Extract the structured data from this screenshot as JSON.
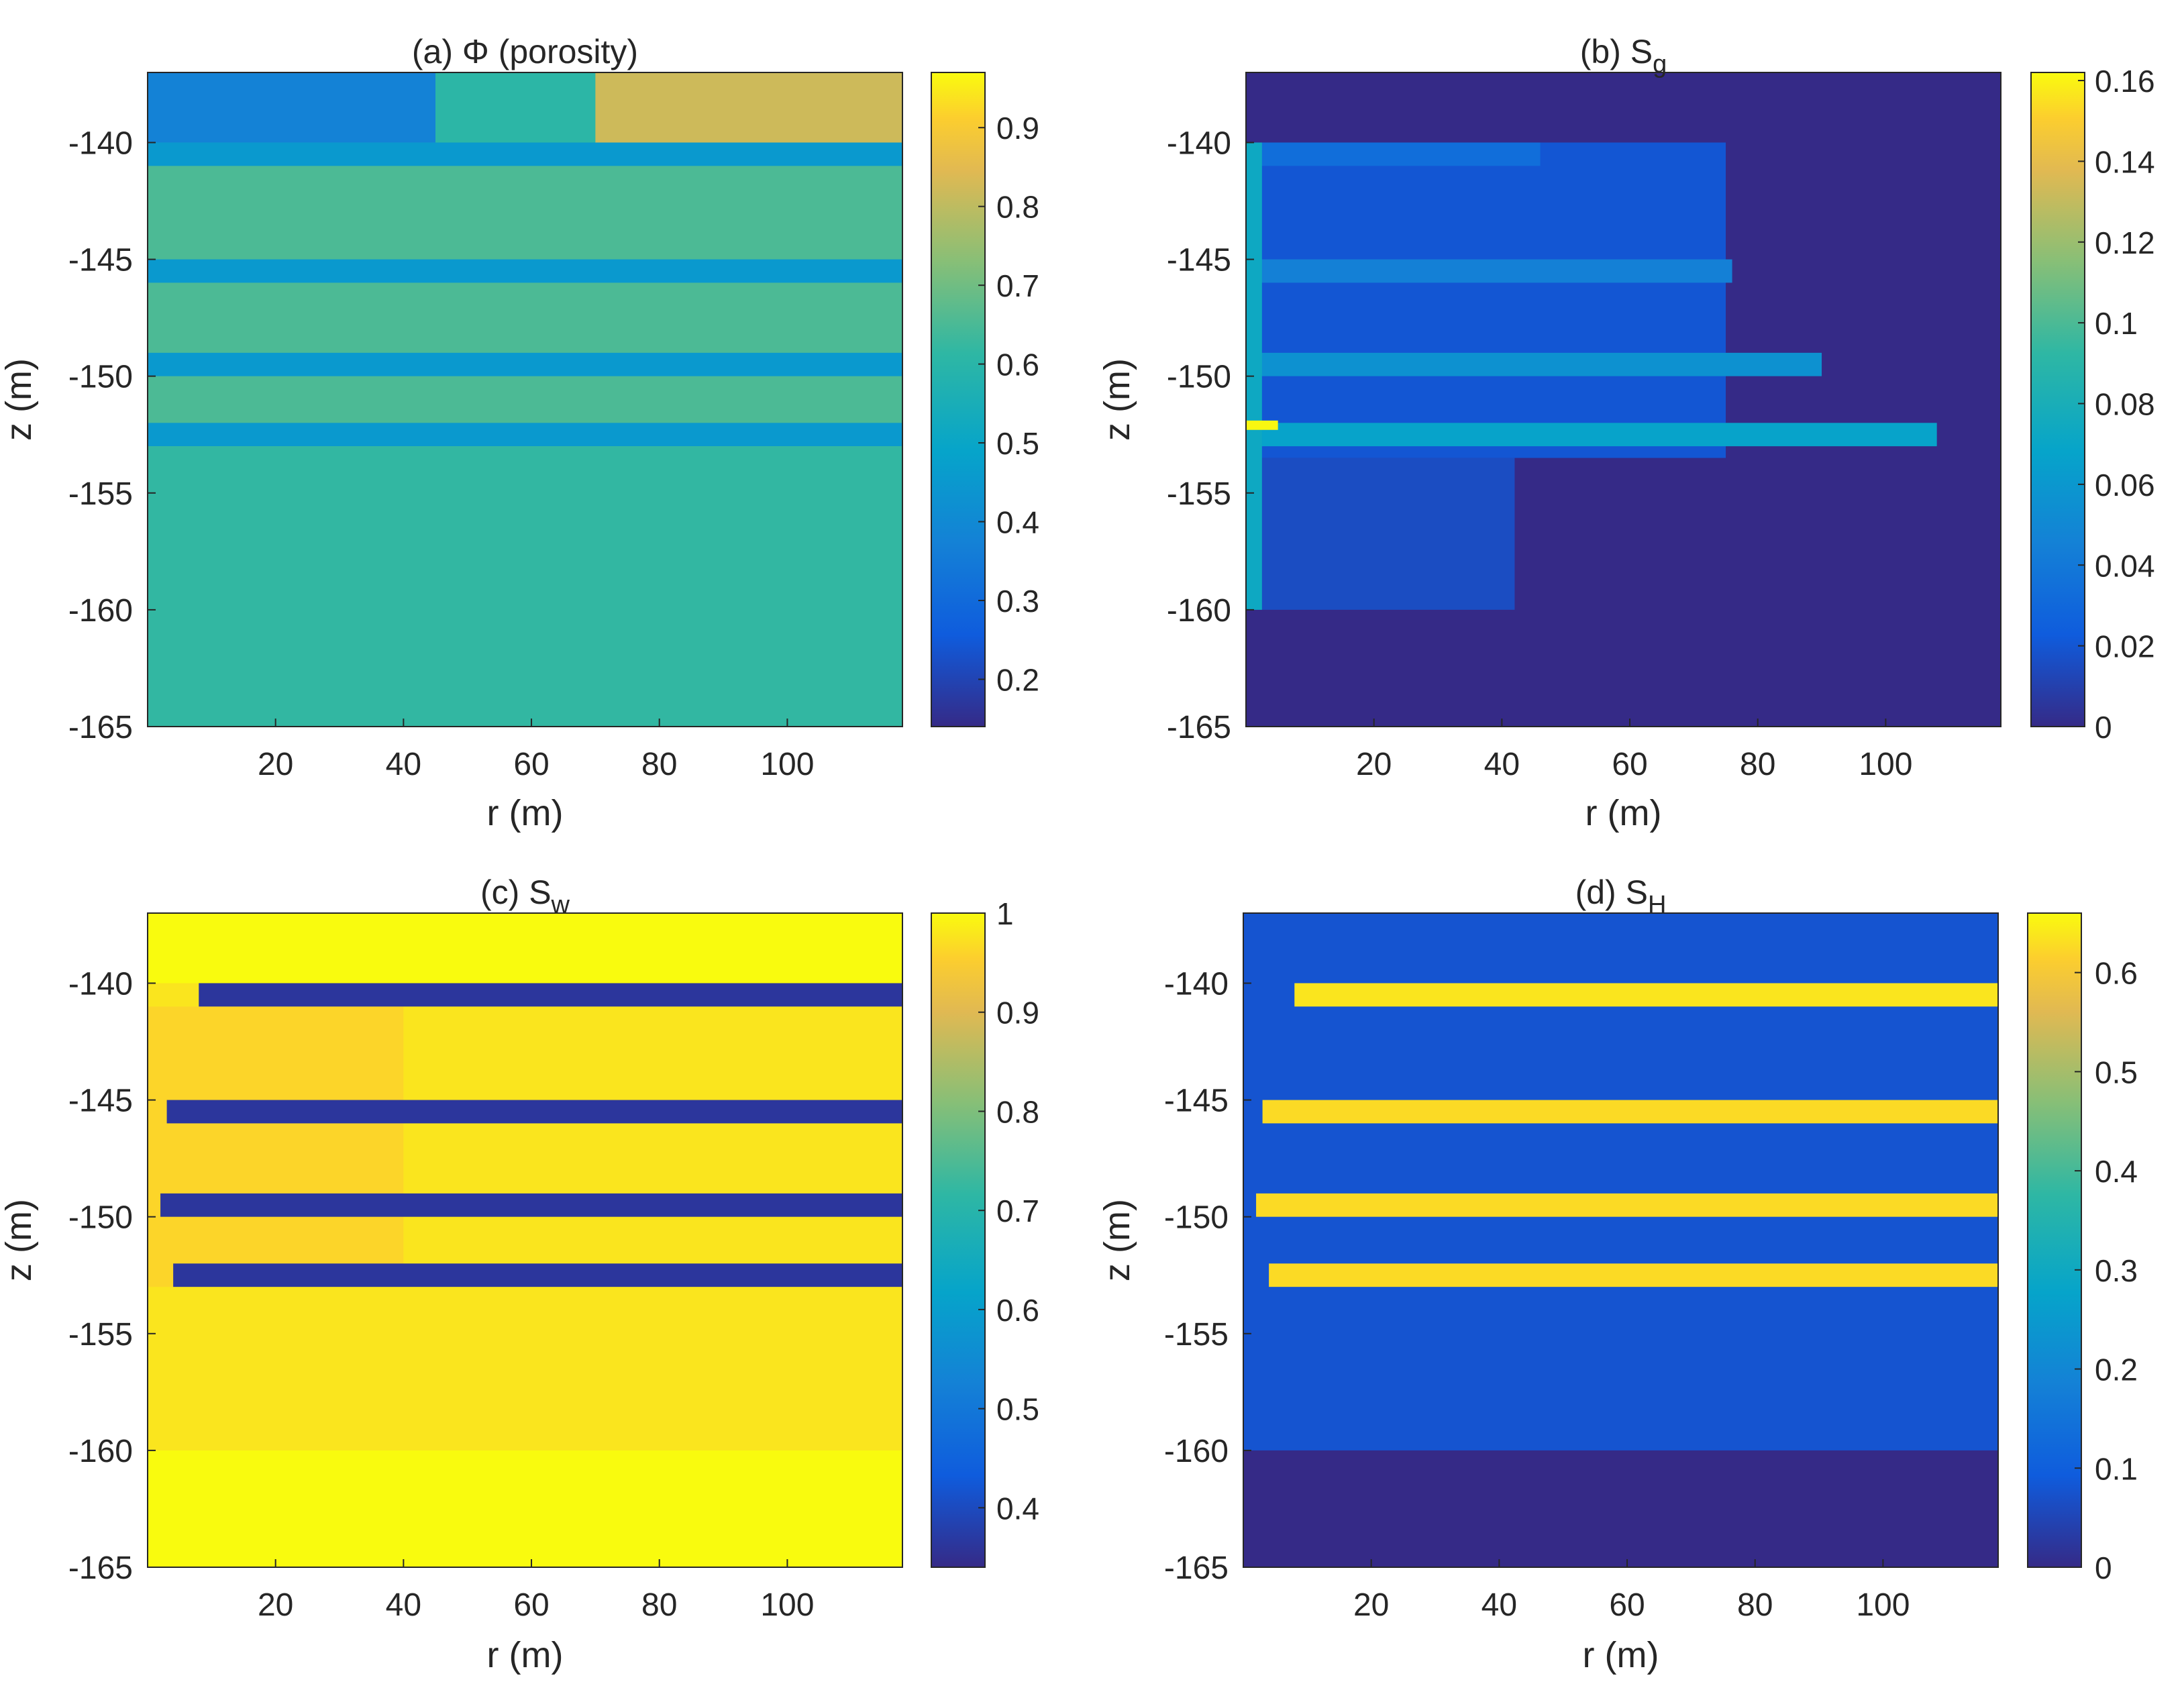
{
  "figure": {
    "background": "#ffffff"
  },
  "chart_data": [
    {
      "id": "a",
      "type": "heatmap",
      "title": "(a) Φ (porosity)",
      "title_parts": [
        {
          "text": "(a) Φ (porosity)",
          "sub": ""
        }
      ],
      "xlabel": "r (m)",
      "ylabel": "z (m)",
      "xlim": [
        0,
        118
      ],
      "ylim": [
        -165,
        -137
      ],
      "xticks": [
        20,
        40,
        60,
        80,
        100
      ],
      "yticks": [
        -140,
        -145,
        -150,
        -155,
        -160,
        -165
      ],
      "colorbar": {
        "min": 0.14,
        "max": 0.97,
        "ticks": [
          0.2,
          0.3,
          0.4,
          0.5,
          0.6,
          0.7,
          0.8,
          0.9
        ]
      },
      "background_value": 0.59,
      "regions": [
        {
          "name": "top-layer-left",
          "r": [
            0,
            45
          ],
          "z": [
            -140,
            -137
          ],
          "value": 0.35
        },
        {
          "name": "top-layer-mid",
          "r": [
            45,
            70
          ],
          "z": [
            -140,
            -137
          ],
          "value": 0.55
        },
        {
          "name": "top-layer-right",
          "r": [
            70,
            118
          ],
          "z": [
            -140,
            -137
          ],
          "value": 0.74
        },
        {
          "name": "hydrate-layer-1",
          "r": [
            0,
            118
          ],
          "z": [
            -141,
            -140
          ],
          "value": 0.42
        },
        {
          "name": "hydrate-layer-2",
          "r": [
            0,
            118
          ],
          "z": [
            -146,
            -145
          ],
          "value": 0.42
        },
        {
          "name": "hydrate-layer-3",
          "r": [
            0,
            118
          ],
          "z": [
            -150,
            -149
          ],
          "value": 0.42
        },
        {
          "name": "hydrate-layer-4",
          "r": [
            0,
            118
          ],
          "z": [
            -153,
            -152
          ],
          "value": 0.42
        },
        {
          "name": "lower-sediment",
          "r": [
            0,
            118
          ],
          "z": [
            -165,
            -153
          ],
          "value": 0.56
        }
      ]
    },
    {
      "id": "b",
      "type": "heatmap",
      "title": "(b) Sg",
      "title_parts": [
        {
          "text": "(b) S",
          "sub": "g"
        }
      ],
      "xlabel": "r (m)",
      "ylabel": "z (m)",
      "xlim": [
        0,
        118
      ],
      "ylim": [
        -165,
        -137
      ],
      "xticks": [
        20,
        40,
        60,
        80,
        100
      ],
      "yticks": [
        -140,
        -145,
        -150,
        -155,
        -160,
        -165
      ],
      "colorbar": {
        "min": 0,
        "max": 0.162,
        "ticks": [
          0,
          0.02,
          0.04,
          0.06,
          0.08,
          0.1,
          0.12,
          0.14,
          0.16
        ]
      },
      "background_value": 0.0,
      "regions": [
        {
          "name": "gas-zone-upper",
          "r": [
            0,
            75
          ],
          "z": [
            -153.5,
            -140
          ],
          "value": 0.018
        },
        {
          "name": "gas-zone-lower",
          "r": [
            0,
            42
          ],
          "z": [
            -160,
            -153.5
          ],
          "value": 0.014
        },
        {
          "name": "gas-layer-1",
          "r": [
            0,
            46
          ],
          "z": [
            -141,
            -140
          ],
          "value": 0.03
        },
        {
          "name": "gas-layer-2",
          "r": [
            0,
            76
          ],
          "z": [
            -146,
            -145
          ],
          "value": 0.04
        },
        {
          "name": "gas-layer-3",
          "r": [
            0,
            90
          ],
          "z": [
            -150,
            -149
          ],
          "value": 0.05
        },
        {
          "name": "gas-layer-4",
          "r": [
            0,
            108
          ],
          "z": [
            -153,
            -152
          ],
          "value": 0.06
        },
        {
          "name": "wellbore-column",
          "r": [
            0,
            2.5
          ],
          "z": [
            -160,
            -140
          ],
          "value": 0.065
        },
        {
          "name": "gas-peak-4",
          "r": [
            0,
            5
          ],
          "z": [
            -152.3,
            -151.9
          ],
          "value": 0.16
        }
      ]
    },
    {
      "id": "c",
      "type": "heatmap",
      "title": "(c) Sw",
      "title_parts": [
        {
          "text": "(c) S",
          "sub": "w"
        }
      ],
      "xlabel": "r (m)",
      "ylabel": "z (m)",
      "xlim": [
        0,
        118
      ],
      "ylim": [
        -165,
        -137
      ],
      "xticks": [
        20,
        40,
        60,
        80,
        100
      ],
      "yticks": [
        -140,
        -145,
        -150,
        -155,
        -160,
        -165
      ],
      "colorbar": {
        "min": 0.34,
        "max": 1.0,
        "ticks": [
          0.4,
          0.5,
          0.6,
          0.7,
          0.8,
          0.9,
          1
        ]
      },
      "background_value": 1.0,
      "regions": [
        {
          "name": "depressurized-zone",
          "r": [
            0,
            118
          ],
          "z": [
            -160,
            -140
          ],
          "value": 0.96
        },
        {
          "name": "near-well-zone",
          "r": [
            0,
            40
          ],
          "z": [
            -153,
            -141
          ],
          "value": 0.93
        },
        {
          "name": "hydrate-band-1",
          "r": [
            8,
            118
          ],
          "z": [
            -141,
            -140
          ],
          "value": 0.36
        },
        {
          "name": "hydrate-band-2",
          "r": [
            3,
            118
          ],
          "z": [
            -146,
            -145
          ],
          "value": 0.36
        },
        {
          "name": "hydrate-band-3",
          "r": [
            2,
            118
          ],
          "z": [
            -150,
            -149
          ],
          "value": 0.36
        },
        {
          "name": "hydrate-band-4",
          "r": [
            4,
            118
          ],
          "z": [
            -153,
            -152
          ],
          "value": 0.36
        }
      ]
    },
    {
      "id": "d",
      "type": "heatmap",
      "title": "(d) SH",
      "title_parts": [
        {
          "text": "(d) S",
          "sub": "H"
        }
      ],
      "xlabel": "r (m)",
      "ylabel": "z (m)",
      "xlim": [
        0,
        118
      ],
      "ylim": [
        -165,
        -137
      ],
      "xticks": [
        20,
        40,
        60,
        80,
        100
      ],
      "yticks": [
        -140,
        -145,
        -150,
        -155,
        -160,
        -165
      ],
      "colorbar": {
        "min": 0,
        "max": 0.66,
        "ticks": [
          0,
          0.1,
          0.2,
          0.3,
          0.4,
          0.5,
          0.6
        ]
      },
      "background_value": 0.0,
      "regions": [
        {
          "name": "residual-hydrate-zone",
          "r": [
            0,
            118
          ],
          "z": [
            -160,
            -137
          ],
          "value": 0.07
        },
        {
          "name": "hydrate-band-1",
          "r": [
            8,
            118
          ],
          "z": [
            -141,
            -140
          ],
          "value": 0.62
        },
        {
          "name": "hydrate-band-2",
          "r": [
            3,
            118
          ],
          "z": [
            -146,
            -145
          ],
          "value": 0.6
        },
        {
          "name": "hydrate-band-3",
          "r": [
            2,
            118
          ],
          "z": [
            -150,
            -149
          ],
          "value": 0.6
        },
        {
          "name": "hydrate-band-4",
          "r": [
            4,
            118
          ],
          "z": [
            -153,
            -152
          ],
          "value": 0.6
        }
      ]
    }
  ]
}
